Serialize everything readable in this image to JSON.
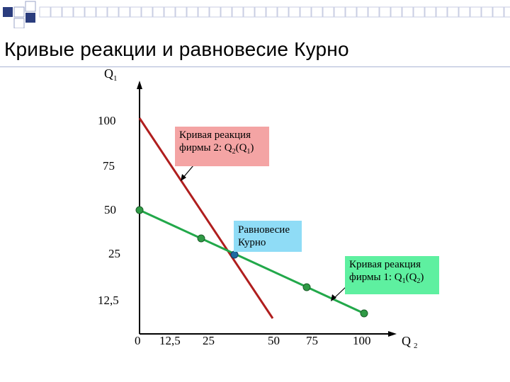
{
  "title": "Кривые реакции и равновесие Курно",
  "colors": {
    "deco_square_dark": "#2b3d7e",
    "deco_square_light": "#ffffff",
    "deco_square_border": "#9aa3c7",
    "firm2_line": "#b01e1e",
    "firm1_line": "#22a84a",
    "dot": "#2f9a45",
    "eq_dot": "#1e6aa0",
    "callout_firm2": "#f4a4a4",
    "callout_eq": "#8fdcf6",
    "callout_firm1": "#5ef0a0"
  },
  "chart_data": {
    "type": "line",
    "x_axis": {
      "label": "Q",
      "label_sub": "2",
      "ticks": [
        "0",
        "12,5",
        "25",
        "50",
        "75",
        "100"
      ],
      "tick_values": [
        0,
        12.5,
        25,
        50,
        75,
        100
      ]
    },
    "y_axis": {
      "label": "Q",
      "label_sub": "1",
      "ticks": [
        "100",
        "75",
        "50",
        "25",
        "12,5"
      ],
      "tick_values": [
        100,
        75,
        50,
        25,
        12.5
      ]
    },
    "series": [
      {
        "name": "Кривая реакция фирмы 2: Q2(Q1)",
        "points": [
          [
            0,
            100
          ],
          [
            50,
            0
          ]
        ],
        "style": "firm2"
      },
      {
        "name": "Кривая реакция фирмы 1: Q1(Q2)",
        "points": [
          [
            0,
            50
          ],
          [
            100,
            0
          ]
        ],
        "style": "firm1"
      }
    ],
    "markers": [
      [
        0,
        50
      ],
      [
        25,
        37.5
      ],
      [
        75,
        12.5
      ],
      [
        100,
        0
      ]
    ],
    "equilibrium": [
      33.3,
      33.3
    ],
    "annotations": {
      "firm2": {
        "line1": "Кривая реакция",
        "line2_main": "фирмы 2:  Q",
        "sub_a": "2",
        "open": "(Q",
        "sub_b": "1",
        "close": ")"
      },
      "equilibrium": {
        "line1": "Равновесие",
        "line2": "Курно"
      },
      "firm1": {
        "line1": "Кривая реакция",
        "line2_main": "фирмы 1:  Q",
        "sub_a": "1",
        "open": "(Q",
        "sub_b": "2",
        "close": ")"
      }
    }
  }
}
